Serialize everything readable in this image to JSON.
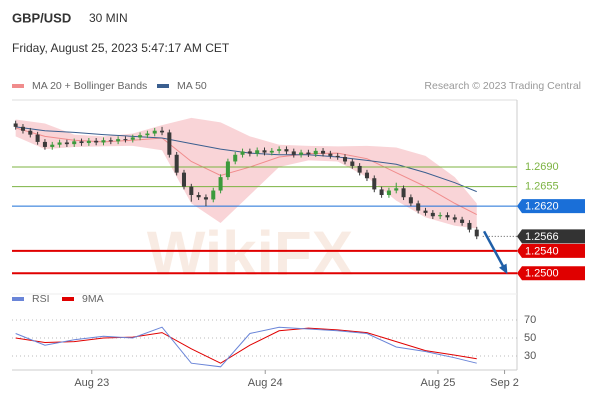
{
  "chart_data": {
    "type": "candlestick",
    "symbol": "GBP/USD",
    "timeframe": "30 MIN",
    "timestamp": "Friday, August 25, 2023 5:47:17 AM CET",
    "credit": "Research © 2023 Trading Central",
    "watermark": "WikiFX",
    "legend": [
      {
        "name": "MA 20 + Bollinger Bands",
        "color": "#f08c8c"
      },
      {
        "name": "MA 50",
        "color": "#3b5f8f"
      }
    ],
    "up_color": "#3c9a3c",
    "down_color": "#3a3a3a",
    "xlim": [
      -0.5,
      68.5
    ],
    "xticks": [
      {
        "value": 10.4,
        "label": "Aug 23"
      },
      {
        "value": 34.1,
        "label": "Aug 24"
      },
      {
        "value": 57.7,
        "label": "Aug 25"
      },
      {
        "value": 66.8,
        "label": "Sep 2"
      }
    ],
    "ylim": [
      1.247,
      1.281
    ],
    "open": [
      1.2768,
      1.2762,
      1.2755,
      1.2748,
      1.2735,
      1.2726,
      1.273,
      1.2734,
      1.2731,
      1.2736,
      1.2733,
      1.2737,
      1.2734,
      1.2738,
      1.2736,
      1.274,
      1.2739,
      1.2743,
      1.2747,
      1.275,
      1.2755,
      1.2752,
      1.2712,
      1.268,
      1.2655,
      1.264,
      1.2636,
      1.2632,
      1.2648,
      1.2672,
      1.27,
      1.2712,
      1.2718,
      1.2714,
      1.272,
      1.2716,
      1.2719,
      1.2722,
      1.2718,
      1.2712,
      1.2716,
      1.2713,
      1.2719,
      1.2714,
      1.271,
      1.2708,
      1.27,
      1.2692,
      1.268,
      1.267,
      1.265,
      1.264,
      1.2648,
      1.2652,
      1.2636,
      1.2625,
      1.2612,
      1.2608,
      1.2602,
      1.2604,
      1.26,
      1.2596,
      1.259,
      1.2578
    ],
    "high": [
      1.2773,
      1.2767,
      1.276,
      1.2753,
      1.274,
      1.2735,
      1.2739,
      1.2739,
      1.2741,
      1.2741,
      1.2742,
      1.2742,
      1.2743,
      1.2743,
      1.2745,
      1.2745,
      1.2748,
      1.2752,
      1.2755,
      1.276,
      1.2762,
      1.2757,
      1.2717,
      1.2685,
      1.266,
      1.2645,
      1.2641,
      1.2653,
      1.2677,
      1.2705,
      1.2717,
      1.2723,
      1.2723,
      1.2725,
      1.2725,
      1.2724,
      1.2727,
      1.2727,
      1.2723,
      1.2721,
      1.2721,
      1.2724,
      1.2724,
      1.2719,
      1.2715,
      1.2713,
      1.2705,
      1.2697,
      1.2685,
      1.2675,
      1.2655,
      1.2653,
      1.2662,
      1.2657,
      1.2641,
      1.263,
      1.2617,
      1.2613,
      1.2609,
      1.2609,
      1.2605,
      1.2601,
      1.2595,
      1.2583
    ],
    "low": [
      1.2757,
      1.275,
      1.2743,
      1.273,
      1.2721,
      1.2721,
      1.2725,
      1.2726,
      1.2726,
      1.2728,
      1.2728,
      1.2729,
      1.2729,
      1.2731,
      1.2731,
      1.2734,
      1.2734,
      1.2738,
      1.2742,
      1.2745,
      1.2747,
      1.2707,
      1.2675,
      1.265,
      1.2628,
      1.2631,
      1.262,
      1.2627,
      1.2643,
      1.2667,
      1.2695,
      1.2707,
      1.2709,
      1.2709,
      1.2711,
      1.2711,
      1.2714,
      1.2713,
      1.2707,
      1.2707,
      1.2708,
      1.2708,
      1.2709,
      1.2705,
      1.2703,
      1.2695,
      1.2687,
      1.2675,
      1.2665,
      1.2645,
      1.2635,
      1.2635,
      1.2643,
      1.2631,
      1.262,
      1.2607,
      1.2603,
      1.2597,
      1.2597,
      1.2595,
      1.2591,
      1.2585,
      1.2573,
      1.2561
    ],
    "close": [
      1.2762,
      1.2755,
      1.2748,
      1.2735,
      1.2726,
      1.273,
      1.2734,
      1.2731,
      1.2736,
      1.2733,
      1.2737,
      1.2734,
      1.2738,
      1.2736,
      1.274,
      1.2739,
      1.2743,
      1.2747,
      1.275,
      1.2755,
      1.2752,
      1.2712,
      1.268,
      1.2655,
      1.264,
      1.2636,
      1.2632,
      1.2648,
      1.2672,
      1.27,
      1.2712,
      1.2718,
      1.2714,
      1.272,
      1.2716,
      1.2719,
      1.2722,
      1.2718,
      1.2712,
      1.2716,
      1.2713,
      1.2719,
      1.2714,
      1.271,
      1.2708,
      1.27,
      1.2692,
      1.268,
      1.267,
      1.265,
      1.264,
      1.2648,
      1.2652,
      1.2636,
      1.2625,
      1.2612,
      1.2608,
      1.2602,
      1.2604,
      1.26,
      1.2596,
      1.259,
      1.2578,
      1.2566
    ],
    "indicator_x": [
      0,
      4,
      8,
      12,
      16,
      20,
      24,
      28,
      32,
      36,
      40,
      44,
      48,
      52,
      56,
      60,
      63
    ],
    "ma20": [
      1.276,
      1.2745,
      1.2738,
      1.2735,
      1.2738,
      1.2742,
      1.27,
      1.2675,
      1.269,
      1.2708,
      1.2714,
      1.2715,
      1.2705,
      1.268,
      1.2655,
      1.2625,
      1.2605
    ],
    "bb_upper": [
      1.2775,
      1.2768,
      1.2748,
      1.2745,
      1.275,
      1.2765,
      1.2778,
      1.277,
      1.2745,
      1.273,
      1.2728,
      1.2727,
      1.2728,
      1.2725,
      1.271,
      1.2672,
      1.2625
    ],
    "bb_lower": [
      1.2745,
      1.2722,
      1.2726,
      1.2727,
      1.2728,
      1.272,
      1.2625,
      1.259,
      1.264,
      1.269,
      1.2702,
      1.27,
      1.2672,
      1.263,
      1.26,
      1.2585,
      1.258
    ],
    "ma50": [
      1.2762,
      1.2755,
      1.2752,
      1.2748,
      1.2745,
      1.2742,
      1.2732,
      1.2722,
      1.2715,
      1.2712,
      1.2712,
      1.2708,
      1.2702,
      1.2695,
      1.268,
      1.2662,
      1.2646
    ],
    "levels": [
      {
        "value": 1.269,
        "label": "1.2690",
        "color": "#7cb342",
        "style": "thin"
      },
      {
        "value": 1.2655,
        "label": "1.2655",
        "color": "#7cb342",
        "style": "thin"
      },
      {
        "value": 1.262,
        "label": "1.2620",
        "color": "#1a6fd8",
        "style": "box"
      },
      {
        "value": 1.2566,
        "label": "1.2566",
        "color": "#333333",
        "style": "dotted"
      },
      {
        "value": 1.254,
        "label": "1.2540",
        "color": "#e00000",
        "style": "thick"
      },
      {
        "value": 1.25,
        "label": "1.2500",
        "color": "#e00000",
        "style": "thick"
      }
    ],
    "target_arrow": {
      "x": [
        64,
        67
      ],
      "y": [
        1.2575,
        1.2503
      ],
      "color": "#1f5fa8"
    },
    "rsi": {
      "legend": [
        {
          "name": "RSI",
          "color": "#6a85d8"
        },
        {
          "name": "9MA",
          "color": "#e00000"
        }
      ],
      "ylim": [
        15,
        75
      ],
      "yticks": [
        70,
        50,
        30
      ],
      "rsi": [
        55,
        42,
        48,
        52,
        50,
        62,
        22,
        18,
        55,
        62,
        60,
        58,
        55,
        40,
        35,
        28,
        22
      ],
      "ma9": [
        50,
        45,
        46,
        50,
        51,
        56,
        38,
        22,
        42,
        58,
        61,
        59,
        56,
        46,
        36,
        31,
        27
      ]
    }
  }
}
